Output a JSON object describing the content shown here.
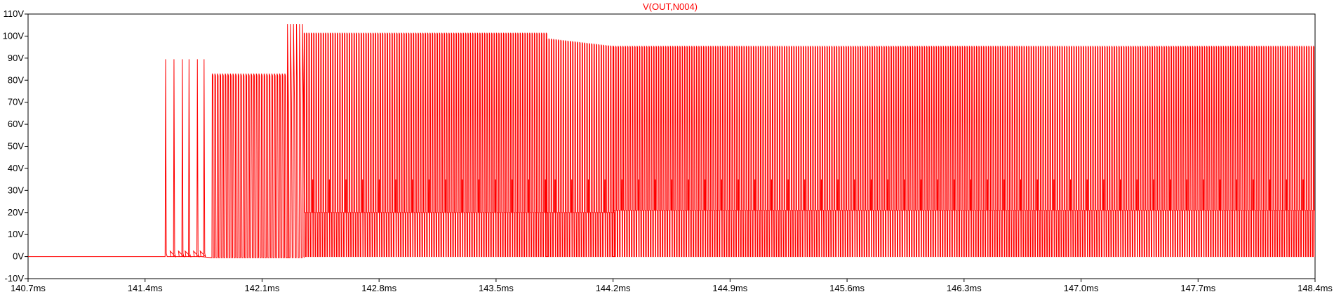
{
  "chart_data": {
    "type": "line",
    "title": "V(OUT,N004)",
    "xlabel": "",
    "ylabel": "",
    "xlim": [
      140.7,
      148.4
    ],
    "ylim": [
      -10,
      110
    ],
    "x_unit": "ms",
    "y_unit": "V",
    "x_ticks": [
      "140.7ms",
      "141.4ms",
      "142.1ms",
      "142.8ms",
      "143.5ms",
      "144.2ms",
      "144.9ms",
      "145.6ms",
      "146.3ms",
      "147.0ms",
      "147.7ms",
      "148.4ms"
    ],
    "y_ticks": [
      "110V",
      "100V",
      "90V",
      "80V",
      "70V",
      "60V",
      "50V",
      "40V",
      "30V",
      "20V",
      "10V",
      "0V",
      "-10V"
    ],
    "grid": false,
    "series": [
      {
        "color": "#ff0000",
        "description": "switching waveform; pulse train read off the axes",
        "baseline_until_ms": 141.52,
        "phases": [
          {
            "start_ms": 141.52,
            "end_ms": 141.76,
            "pulse_peak_v": 89.5,
            "pulse_count": 6,
            "low_v": 0
          },
          {
            "start_ms": 141.8,
            "end_ms": 142.25,
            "pulse_peak_v": 83,
            "low_v": -0.5
          },
          {
            "start_ms": 142.25,
            "end_ms": 142.35,
            "pulse_peak_v": 105.5,
            "low_v": -0.5
          },
          {
            "start_ms": 142.35,
            "end_ms": 143.8,
            "pulse_peak_v": 101.5,
            "mid_level_v": 20,
            "low_v": 0
          },
          {
            "start_ms": 143.8,
            "end_ms": 144.2,
            "pulse_peak_v": 97,
            "mid_level_v": 20,
            "low_v": 0
          },
          {
            "start_ms": 144.2,
            "end_ms": 148.4,
            "pulse_peak_v": 95.5,
            "mid_level_v": 21,
            "low_v": 0
          }
        ]
      }
    ]
  },
  "colors": {
    "trace": "#ff0000",
    "title": "#ff0000",
    "axis": "#000000",
    "background": "#ffffff"
  }
}
